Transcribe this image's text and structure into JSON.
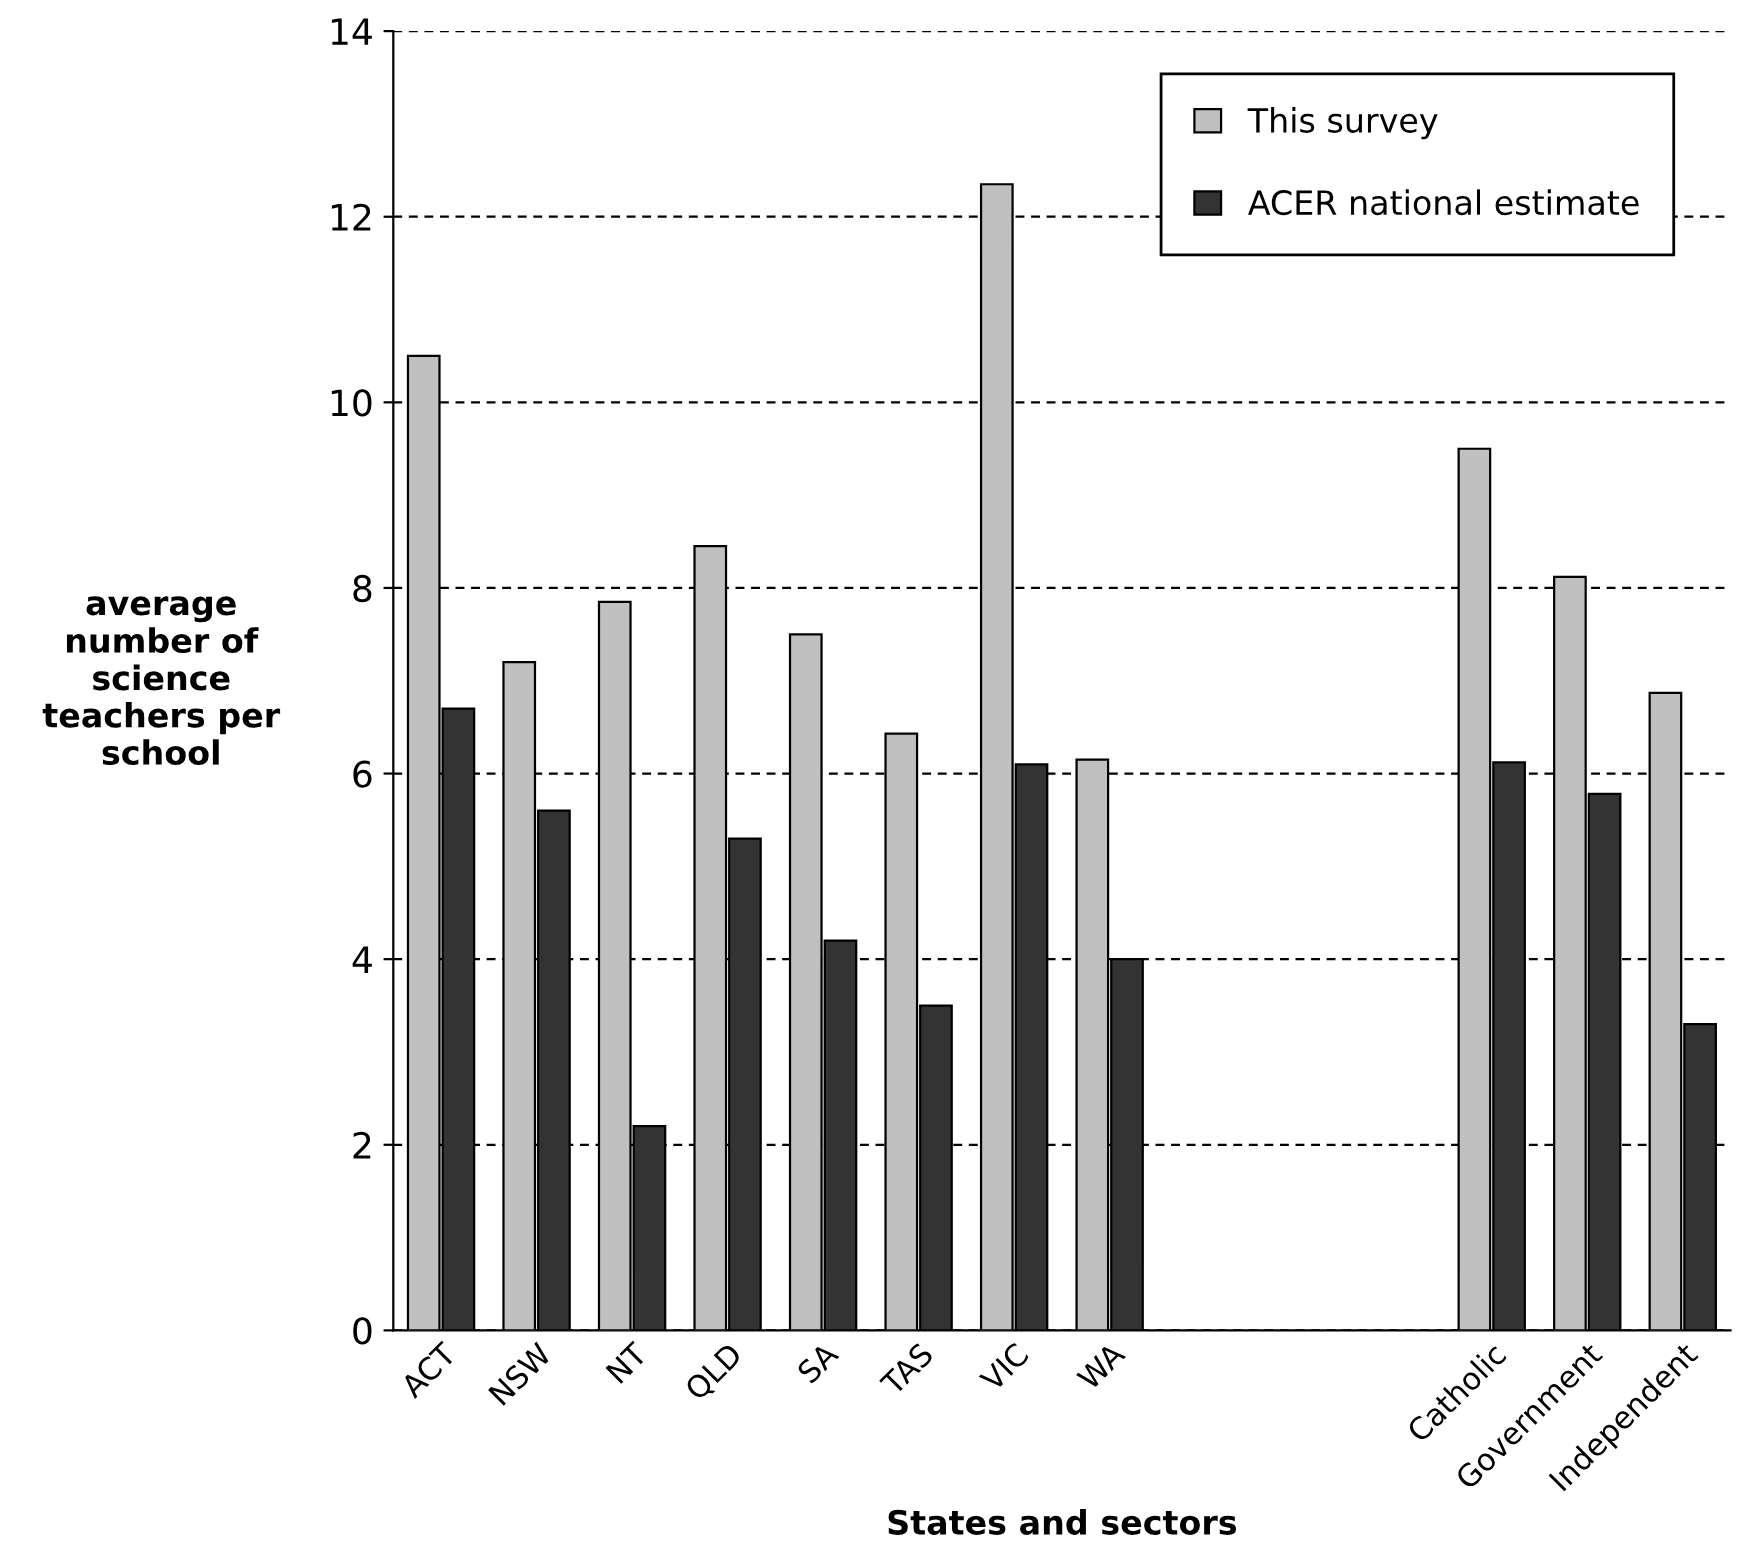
{
  "chart_data": {
    "type": "bar",
    "xlabel": "States and sectors",
    "ylabel": "average\nnumber of\nscience\nteachers per\nschool",
    "categories": [
      "ACT",
      "NSW",
      "NT",
      "QLD",
      "SA",
      "TAS",
      "VIC",
      "WA",
      null,
      null,
      null,
      "Catholic",
      "Government",
      "Independent"
    ],
    "series": [
      {
        "name": "This survey",
        "color": "#c0c0c0",
        "values": [
          10.5,
          7.2,
          7.85,
          8.45,
          7.5,
          6.43,
          12.35,
          6.15,
          null,
          null,
          null,
          9.5,
          8.12,
          6.87
        ]
      },
      {
        "name": "ACER national estimate",
        "color": "#333333",
        "values": [
          6.7,
          5.6,
          2.2,
          5.3,
          4.2,
          3.5,
          6.1,
          4.0,
          null,
          null,
          null,
          6.12,
          5.78,
          3.3
        ]
      }
    ],
    "ylim": [
      0,
      14
    ],
    "yticks": [
      0,
      2,
      4,
      6,
      8,
      10,
      12,
      14
    ],
    "grid": "y",
    "legend": "top right"
  }
}
